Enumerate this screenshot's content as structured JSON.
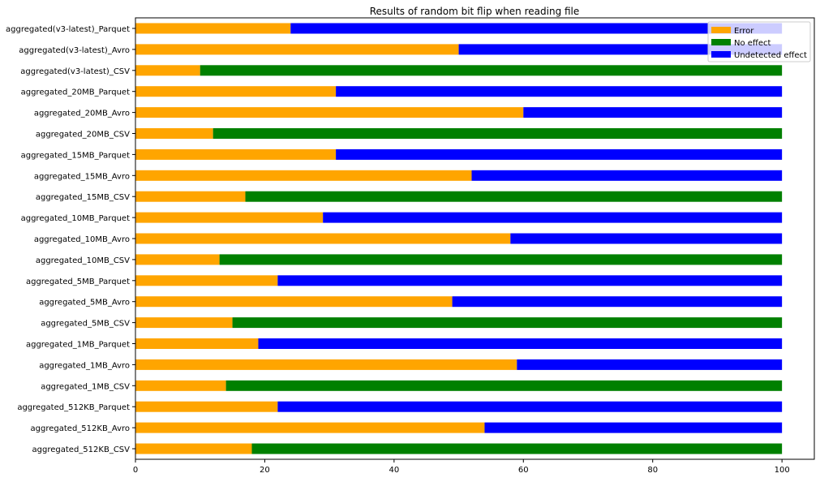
{
  "chart_data": {
    "type": "bar",
    "orientation": "horizontal",
    "stacked": true,
    "title": "Results of random bit flip when reading file",
    "xlabel": "",
    "ylabel": "",
    "xlim": [
      0,
      105
    ],
    "xticks": [
      0,
      20,
      40,
      60,
      80,
      100
    ],
    "grid": false,
    "legend_position": "top-right",
    "categories": [
      "aggregated(v3-latest)_Parquet",
      "aggregated(v3-latest)_Avro",
      "aggregated(v3-latest)_CSV",
      "aggregated_20MB_Parquet",
      "aggregated_20MB_Avro",
      "aggregated_20MB_CSV",
      "aggregated_15MB_Parquet",
      "aggregated_15MB_Avro",
      "aggregated_15MB_CSV",
      "aggregated_10MB_Parquet",
      "aggregated_10MB_Avro",
      "aggregated_10MB_CSV",
      "aggregated_5MB_Parquet",
      "aggregated_5MB_Avro",
      "aggregated_5MB_CSV",
      "aggregated_1MB_Parquet",
      "aggregated_1MB_Avro",
      "aggregated_1MB_CSV",
      "aggregated_512KB_Parquet",
      "aggregated_512KB_Avro",
      "aggregated_512KB_CSV"
    ],
    "series": [
      {
        "name": "Error",
        "color": "#ffa500",
        "values": [
          24,
          50,
          10,
          31,
          60,
          12,
          31,
          52,
          17,
          29,
          58,
          13,
          22,
          49,
          15,
          19,
          59,
          14,
          22,
          54,
          18
        ]
      },
      {
        "name": "No effect",
        "color": "#008000",
        "values": [
          0,
          0,
          90,
          0,
          0,
          88,
          0,
          0,
          83,
          0,
          0,
          87,
          0,
          0,
          85,
          0,
          0,
          86,
          0,
          0,
          82
        ]
      },
      {
        "name": "Undetected effect",
        "color": "#0000ff",
        "values": [
          76,
          50,
          0,
          69,
          40,
          0,
          69,
          48,
          0,
          71,
          42,
          0,
          78,
          51,
          0,
          81,
          41,
          0,
          78,
          46,
          0
        ]
      }
    ]
  }
}
